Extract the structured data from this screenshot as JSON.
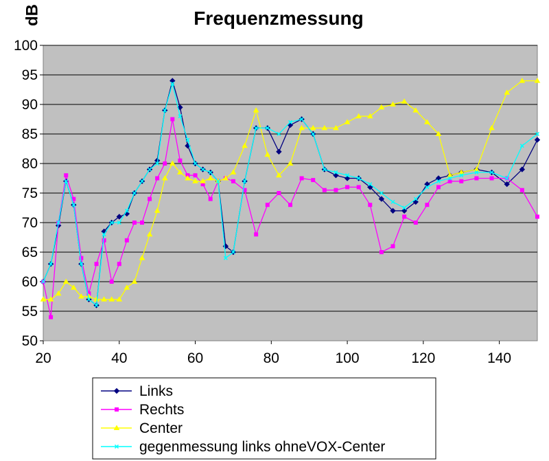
{
  "chart_data": {
    "type": "line",
    "title": "Frequenzmessung",
    "ylabel": "dB",
    "xlabel": "",
    "xlim": [
      20,
      150
    ],
    "ylim": [
      50,
      100
    ],
    "xticks": [
      "20",
      "40",
      "60",
      "80",
      "100",
      "120",
      "140"
    ],
    "yticks": [
      "50",
      "55",
      "60",
      "65",
      "70",
      "75",
      "80",
      "85",
      "90",
      "95",
      "100"
    ],
    "grid": "horizontal",
    "legend_position": "bottom",
    "plot_background": "#C0C0C0",
    "series": [
      {
        "name": "Links",
        "color": "#000080",
        "marker": "diamond",
        "x": [
          20,
          22,
          24,
          26,
          28,
          30,
          32,
          34,
          36,
          38,
          40,
          42,
          44,
          46,
          48,
          50,
          52,
          54,
          56,
          58,
          60,
          62,
          64,
          66,
          68,
          70,
          73,
          76,
          79,
          82,
          85,
          88,
          91,
          94,
          97,
          100,
          103,
          106,
          109,
          112,
          115,
          118,
          121,
          124,
          127,
          130,
          134,
          138,
          142,
          146,
          150
        ],
        "y": [
          60,
          63,
          69.5,
          77,
          73,
          63,
          57,
          56,
          68.5,
          70,
          71,
          71.5,
          75,
          77,
          79,
          80.5,
          89,
          94,
          89.5,
          83,
          80,
          79,
          78.5,
          77,
          66,
          65,
          77,
          86,
          86,
          82,
          86.5,
          87.5,
          85,
          79,
          78,
          77.5,
          77.5,
          76,
          74,
          72,
          72,
          73.5,
          76.5,
          77.5,
          78,
          78.5,
          79,
          78.5,
          76.5,
          79,
          84
        ]
      },
      {
        "name": "Rechts",
        "color": "#FF00FF",
        "marker": "square",
        "x": [
          20,
          22,
          24,
          26,
          28,
          30,
          32,
          34,
          36,
          38,
          40,
          42,
          44,
          46,
          48,
          50,
          52,
          54,
          56,
          58,
          60,
          62,
          64,
          66,
          68,
          70,
          73,
          76,
          79,
          82,
          85,
          88,
          91,
          94,
          97,
          100,
          103,
          106,
          109,
          112,
          115,
          118,
          121,
          124,
          127,
          130,
          134,
          138,
          142,
          146,
          150
        ],
        "y": [
          60,
          54,
          70,
          78,
          74,
          64,
          58,
          63,
          67,
          60,
          63,
          67,
          70,
          70,
          74,
          77.5,
          80,
          87.5,
          80.5,
          78,
          78,
          76.5,
          74,
          77,
          77.5,
          77,
          75.5,
          68,
          73,
          75,
          73,
          77.5,
          77.2,
          75.5,
          75.5,
          76,
          76,
          73,
          65,
          66,
          71,
          70,
          73,
          76,
          77,
          77,
          77.5,
          77.5,
          77.5,
          75.5,
          71
        ]
      },
      {
        "name": "Center",
        "color": "#FFFF00",
        "marker": "triangle",
        "x": [
          20,
          22,
          24,
          26,
          28,
          30,
          32,
          34,
          36,
          38,
          40,
          42,
          44,
          46,
          48,
          50,
          52,
          54,
          56,
          58,
          60,
          62,
          64,
          66,
          68,
          70,
          73,
          76,
          79,
          82,
          85,
          88,
          91,
          94,
          97,
          100,
          103,
          106,
          109,
          112,
          115,
          118,
          121,
          124,
          127,
          130,
          134,
          138,
          142,
          146,
          150
        ],
        "y": [
          57,
          57,
          58,
          60,
          59,
          57.5,
          57.5,
          57,
          57,
          57,
          57,
          59,
          60,
          64,
          68,
          72,
          77.5,
          80,
          78.5,
          77.5,
          77,
          77,
          77.5,
          77,
          77.5,
          78.5,
          83,
          89,
          81.5,
          78,
          80,
          86,
          86,
          86,
          86,
          87,
          88,
          88,
          89.5,
          90,
          90.5,
          89,
          87,
          85,
          78,
          78.5,
          79,
          86,
          92,
          94,
          94
        ]
      },
      {
        "name": "gegenmessung links ohneVOX-Center",
        "color": "#00FFFF",
        "marker": "x",
        "x": [
          20,
          22,
          24,
          26,
          28,
          30,
          32,
          34,
          36,
          38,
          40,
          42,
          44,
          46,
          48,
          50,
          52,
          54,
          56,
          58,
          60,
          62,
          64,
          66,
          68,
          70,
          73,
          76,
          79,
          82,
          85,
          88,
          91,
          94,
          97,
          100,
          103,
          106,
          109,
          112,
          115,
          118,
          121,
          124,
          127,
          130,
          134,
          138,
          142,
          146,
          150
        ],
        "y": [
          60,
          63,
          70,
          77,
          73,
          63,
          57,
          56,
          68,
          70,
          70,
          72,
          75,
          77,
          79,
          80,
          89,
          93.5,
          88,
          84,
          80,
          79,
          78.5,
          77,
          64,
          65,
          77,
          86,
          86,
          85,
          87,
          87.5,
          85,
          79,
          78.5,
          78,
          77.5,
          76.5,
          75,
          73.5,
          72.5,
          74,
          76,
          77,
          77.5,
          78,
          78.5,
          78.5,
          77.5,
          83,
          85
        ]
      }
    ]
  }
}
